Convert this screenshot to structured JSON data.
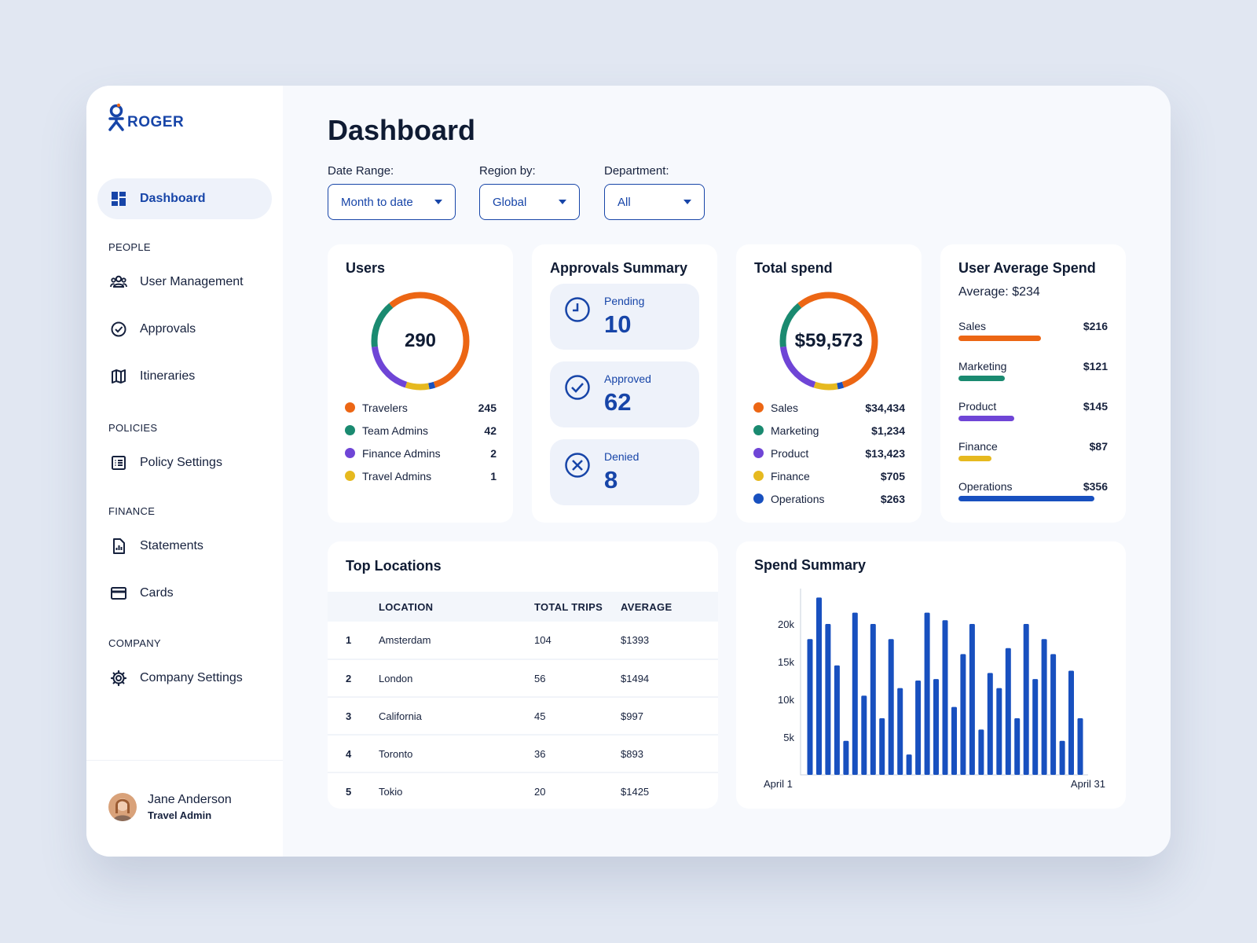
{
  "app": {
    "name": "ROGER"
  },
  "colors": {
    "accent": "#1745a8",
    "orange": "#ec6614",
    "teal": "#1a8a70",
    "purple": "#6f45d6",
    "yellow": "#e6b91f",
    "blue": "#1850bf"
  },
  "sidebar": {
    "dashboard": "Dashboard",
    "sections": {
      "people": "PEOPLE",
      "policies": "POLICIES",
      "finance": "FINANCE",
      "company": "COMPANY"
    },
    "items": {
      "user_management": "User Management",
      "approvals": "Approvals",
      "itineraries": "Itineraries",
      "policy_settings": "Policy Settings",
      "statements": "Statements",
      "cards": "Cards",
      "company_settings": "Company Settings"
    },
    "user": {
      "name": "Jane Anderson",
      "role": "Travel Admin"
    }
  },
  "header": {
    "title": "Dashboard"
  },
  "filters": {
    "date_range": {
      "label": "Date Range:",
      "value": "Month to date"
    },
    "region": {
      "label": "Region by:",
      "value": "Global"
    },
    "department": {
      "label": "Department:",
      "value": "All"
    }
  },
  "users_card": {
    "title": "Users",
    "total": "290",
    "legend": [
      {
        "name": "Travelers",
        "value": "245",
        "color": "#ec6614"
      },
      {
        "name": "Team Admins",
        "value": "42",
        "color": "#1a8a70"
      },
      {
        "name": "Finance Admins",
        "value": "2",
        "color": "#6f45d6"
      },
      {
        "name": "Travel Admins",
        "value": "1",
        "color": "#e6b91f"
      }
    ]
  },
  "approvals_card": {
    "title": "Approvals Summary",
    "pending": {
      "label": "Pending",
      "value": "10"
    },
    "approved": {
      "label": "Approved",
      "value": "62"
    },
    "denied": {
      "label": "Denied",
      "value": "8"
    }
  },
  "spend_card": {
    "title": "Total spend",
    "total": "$59,573",
    "legend": [
      {
        "name": "Sales",
        "value": "$34,434",
        "color": "#ec6614"
      },
      {
        "name": "Marketing",
        "value": "$1,234",
        "color": "#1a8a70"
      },
      {
        "name": "Product",
        "value": "$13,423",
        "color": "#6f45d6"
      },
      {
        "name": "Finance",
        "value": "$705",
        "color": "#e6b91f"
      },
      {
        "name": "Operations",
        "value": "$263",
        "color": "#1850bf"
      }
    ]
  },
  "avg_card": {
    "title": "User Average Spend",
    "average": "Average: $234",
    "rows": [
      {
        "name": "Sales",
        "value": "$216",
        "color": "#ec6614",
        "level": 216
      },
      {
        "name": "Marketing",
        "value": "$121",
        "color": "#1a8a70",
        "level": 121
      },
      {
        "name": "Product",
        "value": "$145",
        "color": "#6f45d6",
        "level": 145
      },
      {
        "name": "Finance",
        "value": "$87",
        "color": "#e6b91f",
        "level": 87
      },
      {
        "name": "Operations",
        "value": "$356",
        "color": "#1850bf",
        "level": 356
      }
    ]
  },
  "locations": {
    "title": "Top Locations",
    "columns": [
      "LOCATION",
      "TOTAL TRIPS",
      "AVERAGE"
    ],
    "rows": [
      [
        "1",
        "Amsterdam",
        "104",
        "$1393"
      ],
      [
        "2",
        "London",
        "56",
        "$1494"
      ],
      [
        "3",
        "California",
        "45",
        "$997"
      ],
      [
        "4",
        "Toronto",
        "36",
        "$893"
      ],
      [
        "5",
        "Tokio",
        "20",
        "$1425"
      ]
    ]
  },
  "chart_data": {
    "type": "bar",
    "title": "Spend Summary",
    "x_start_label": "April 1",
    "x_end_label": "April 31",
    "y_ticks": [
      "20k",
      "15k",
      "10k",
      "5k"
    ],
    "ylim": [
      0,
      25000
    ],
    "color": "#1850bf",
    "values": [
      18000,
      23500,
      20000,
      14500,
      4500,
      21500,
      10500,
      20000,
      7500,
      18000,
      11500,
      2700,
      12500,
      21500,
      12700,
      20500,
      9000,
      16000,
      20000,
      6000,
      13500,
      11500,
      16800,
      7500,
      20000,
      12700,
      18000,
      16000,
      4500,
      13800,
      7500
    ]
  }
}
